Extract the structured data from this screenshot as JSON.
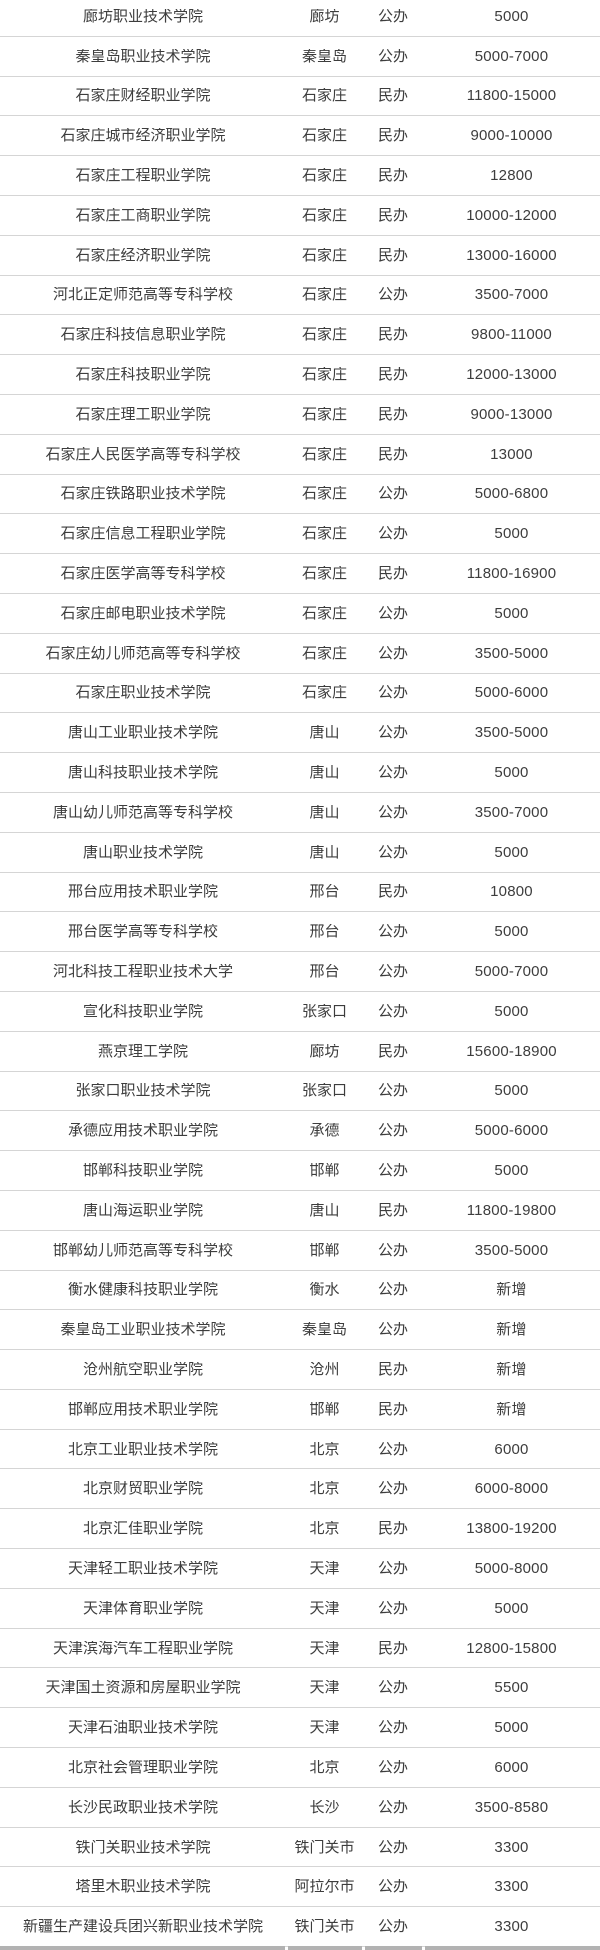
{
  "table": {
    "columns": [
      "school",
      "city",
      "type",
      "fee"
    ],
    "rows": [
      {
        "school": "廊坊职业技术学院",
        "city": "廊坊",
        "type": "公办",
        "fee": "5000"
      },
      {
        "school": "秦皇岛职业技术学院",
        "city": "秦皇岛",
        "type": "公办",
        "fee": "5000-7000"
      },
      {
        "school": "石家庄财经职业学院",
        "city": "石家庄",
        "type": "民办",
        "fee": "11800-15000"
      },
      {
        "school": "石家庄城市经济职业学院",
        "city": "石家庄",
        "type": "民办",
        "fee": "9000-10000"
      },
      {
        "school": "石家庄工程职业学院",
        "city": "石家庄",
        "type": "民办",
        "fee": "12800"
      },
      {
        "school": "石家庄工商职业学院",
        "city": "石家庄",
        "type": "民办",
        "fee": "10000-12000"
      },
      {
        "school": "石家庄经济职业学院",
        "city": "石家庄",
        "type": "民办",
        "fee": "13000-16000"
      },
      {
        "school": "河北正定师范高等专科学校",
        "city": "石家庄",
        "type": "公办",
        "fee": "3500-7000"
      },
      {
        "school": "石家庄科技信息职业学院",
        "city": "石家庄",
        "type": "民办",
        "fee": "9800-11000"
      },
      {
        "school": "石家庄科技职业学院",
        "city": "石家庄",
        "type": "民办",
        "fee": "12000-13000"
      },
      {
        "school": "石家庄理工职业学院",
        "city": "石家庄",
        "type": "民办",
        "fee": "9000-13000"
      },
      {
        "school": "石家庄人民医学高等专科学校",
        "city": "石家庄",
        "type": "民办",
        "fee": "13000"
      },
      {
        "school": "石家庄铁路职业技术学院",
        "city": "石家庄",
        "type": "公办",
        "fee": "5000-6800"
      },
      {
        "school": "石家庄信息工程职业学院",
        "city": "石家庄",
        "type": "公办",
        "fee": "5000"
      },
      {
        "school": "石家庄医学高等专科学校",
        "city": "石家庄",
        "type": "民办",
        "fee": "11800-16900"
      },
      {
        "school": "石家庄邮电职业技术学院",
        "city": "石家庄",
        "type": "公办",
        "fee": "5000"
      },
      {
        "school": "石家庄幼儿师范高等专科学校",
        "city": "石家庄",
        "type": "公办",
        "fee": "3500-5000"
      },
      {
        "school": "石家庄职业技术学院",
        "city": "石家庄",
        "type": "公办",
        "fee": "5000-6000"
      },
      {
        "school": "唐山工业职业技术学院",
        "city": "唐山",
        "type": "公办",
        "fee": "3500-5000"
      },
      {
        "school": "唐山科技职业技术学院",
        "city": "唐山",
        "type": "公办",
        "fee": "5000"
      },
      {
        "school": "唐山幼儿师范高等专科学校",
        "city": "唐山",
        "type": "公办",
        "fee": "3500-7000"
      },
      {
        "school": "唐山职业技术学院",
        "city": "唐山",
        "type": "公办",
        "fee": "5000"
      },
      {
        "school": "邢台应用技术职业学院",
        "city": "邢台",
        "type": "民办",
        "fee": "10800"
      },
      {
        "school": "邢台医学高等专科学校",
        "city": "邢台",
        "type": "公办",
        "fee": "5000"
      },
      {
        "school": "河北科技工程职业技术大学",
        "city": "邢台",
        "type": "公办",
        "fee": "5000-7000"
      },
      {
        "school": "宣化科技职业学院",
        "city": "张家口",
        "type": "公办",
        "fee": "5000"
      },
      {
        "school": "燕京理工学院",
        "city": "廊坊",
        "type": "民办",
        "fee": "15600-18900"
      },
      {
        "school": "张家口职业技术学院",
        "city": "张家口",
        "type": "公办",
        "fee": "5000"
      },
      {
        "school": "承德应用技术职业学院",
        "city": "承德",
        "type": "公办",
        "fee": "5000-6000"
      },
      {
        "school": "邯郸科技职业学院",
        "city": "邯郸",
        "type": "公办",
        "fee": "5000"
      },
      {
        "school": "唐山海运职业学院",
        "city": "唐山",
        "type": "民办",
        "fee": "11800-19800"
      },
      {
        "school": "邯郸幼儿师范高等专科学校",
        "city": "邯郸",
        "type": "公办",
        "fee": "3500-5000"
      },
      {
        "school": "衡水健康科技职业学院",
        "city": "衡水",
        "type": "公办",
        "fee": "新增"
      },
      {
        "school": "秦皇岛工业职业技术学院",
        "city": "秦皇岛",
        "type": "公办",
        "fee": "新增"
      },
      {
        "school": "沧州航空职业学院",
        "city": "沧州",
        "type": "民办",
        "fee": "新增"
      },
      {
        "school": "邯郸应用技术职业学院",
        "city": "邯郸",
        "type": "民办",
        "fee": "新增"
      },
      {
        "school": "北京工业职业技术学院",
        "city": "北京",
        "type": "公办",
        "fee": "6000"
      },
      {
        "school": "北京财贸职业学院",
        "city": "北京",
        "type": "公办",
        "fee": "6000-8000"
      },
      {
        "school": "北京汇佳职业学院",
        "city": "北京",
        "type": "民办",
        "fee": "13800-19200"
      },
      {
        "school": "天津轻工职业技术学院",
        "city": "天津",
        "type": "公办",
        "fee": "5000-8000"
      },
      {
        "school": "天津体育职业学院",
        "city": "天津",
        "type": "公办",
        "fee": "5000"
      },
      {
        "school": "天津滨海汽车工程职业学院",
        "city": "天津",
        "type": "民办",
        "fee": "12800-15800"
      },
      {
        "school": "天津国土资源和房屋职业学院",
        "city": "天津",
        "type": "公办",
        "fee": "5500"
      },
      {
        "school": "天津石油职业技术学院",
        "city": "天津",
        "type": "公办",
        "fee": "5000"
      },
      {
        "school": "北京社会管理职业学院",
        "city": "北京",
        "type": "公办",
        "fee": "6000"
      },
      {
        "school": "长沙民政职业技术学院",
        "city": "长沙",
        "type": "公办",
        "fee": "3500-8580"
      },
      {
        "school": "铁门关职业技术学院",
        "city": "铁门关市",
        "type": "公办",
        "fee": "3300"
      },
      {
        "school": "塔里木职业技术学院",
        "city": "阿拉尔市",
        "type": "公办",
        "fee": "3300"
      },
      {
        "school": "新疆生产建设兵团兴新职业技术学院",
        "city": "铁门关市",
        "type": "公办",
        "fee": "3300"
      }
    ]
  },
  "colors": {
    "text": "#3d3d3d",
    "row_border": "#d5d5d5",
    "next_row_border": "#b2b2b2"
  }
}
